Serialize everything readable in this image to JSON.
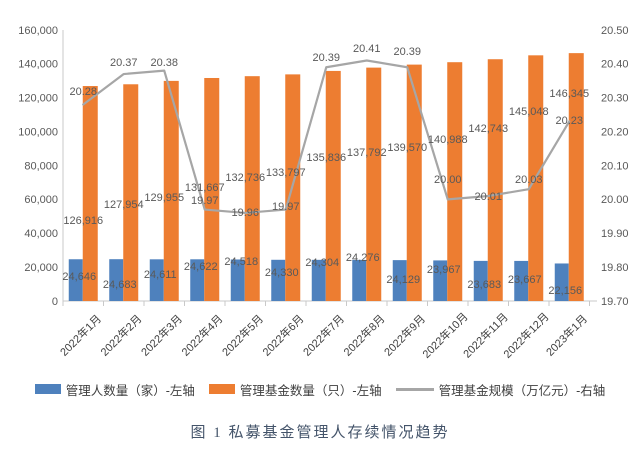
{
  "figure": {
    "caption": "图 1 私募基金管理人存续情况趋势"
  },
  "chart_data": {
    "type": "combo-bar-line",
    "title": "",
    "categories": [
      "2022年1月",
      "2022年2月",
      "2022年3月",
      "2022年4月",
      "2022年5月",
      "2022年6月",
      "2022年7月",
      "2022年8月",
      "2022年9月",
      "2022年10月",
      "2022年11月",
      "2022年12月",
      "2023年1月"
    ],
    "series": [
      {
        "name": "管理人数量（家）-左轴",
        "type": "bar",
        "axis": "left",
        "color": "#4E81BD",
        "values": [
          24646,
          24683,
          24611,
          24622,
          24518,
          24330,
          24304,
          24276,
          24129,
          23967,
          23683,
          23667,
          22156
        ]
      },
      {
        "name": "管理基金数量（只）-左轴",
        "type": "bar",
        "axis": "left",
        "color": "#ED7D31",
        "values": [
          126916,
          127954,
          129955,
          131667,
          132736,
          133797,
          135836,
          137792,
          139570,
          140988,
          142743,
          145048,
          146345
        ]
      },
      {
        "name": "管理基金规模（万亿元）-右轴",
        "type": "line",
        "axis": "right",
        "color": "#A6A6A6",
        "values": [
          20.28,
          20.37,
          20.38,
          19.97,
          19.96,
          19.97,
          20.39,
          20.41,
          20.39,
          20.0,
          20.01,
          20.03,
          20.23
        ]
      }
    ],
    "left_axis": {
      "min": 0,
      "max": 160000,
      "step": 20000
    },
    "right_axis": {
      "min": 19.7,
      "max": 20.5,
      "step": 0.1
    },
    "grid": false,
    "legend_position": "bottom",
    "data_labels": true,
    "axis_line_color": "#C9C9C9"
  }
}
